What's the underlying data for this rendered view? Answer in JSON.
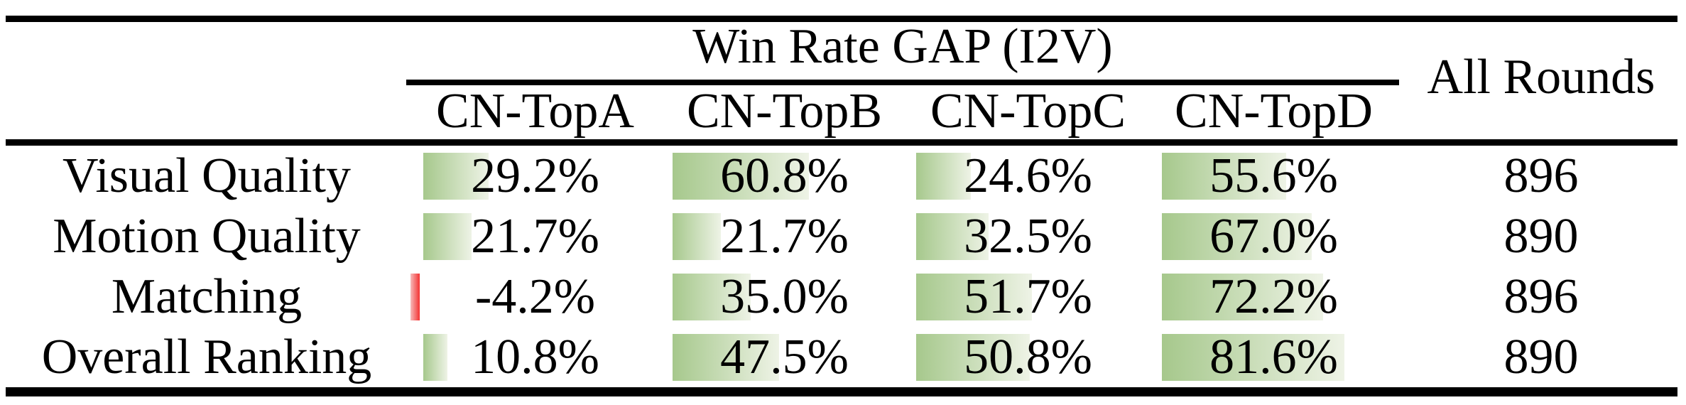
{
  "table": {
    "group_header": "Win Rate GAP (I2V)",
    "all_rounds_header": "All Rounds",
    "column_headers": [
      "CN-TopA",
      "CN-TopB",
      "CN-TopC",
      "CN-TopD"
    ],
    "rows": [
      {
        "label": "Visual Quality",
        "cells": [
          {
            "text": "29.2%",
            "value": 29.2
          },
          {
            "text": "60.8%",
            "value": 60.8
          },
          {
            "text": "24.6%",
            "value": 24.6
          },
          {
            "text": "55.6%",
            "value": 55.6
          }
        ],
        "all_rounds": "896"
      },
      {
        "label": "Motion Quality",
        "cells": [
          {
            "text": "21.7%",
            "value": 21.7
          },
          {
            "text": "21.7%",
            "value": 21.7
          },
          {
            "text": "32.5%",
            "value": 32.5
          },
          {
            "text": "67.0%",
            "value": 67.0
          }
        ],
        "all_rounds": "890"
      },
      {
        "label": "Matching",
        "cells": [
          {
            "text": "-4.2%",
            "value": -4.2
          },
          {
            "text": "35.0%",
            "value": 35.0
          },
          {
            "text": "51.7%",
            "value": 51.7
          },
          {
            "text": "72.2%",
            "value": 72.2
          }
        ],
        "all_rounds": "896"
      },
      {
        "label": "Overall Ranking",
        "cells": [
          {
            "text": "10.8%",
            "value": 10.8
          },
          {
            "text": "47.5%",
            "value": 47.5
          },
          {
            "text": "50.8%",
            "value": 50.8
          },
          {
            "text": "81.6%",
            "value": 81.6
          }
        ],
        "all_rounds": "890"
      }
    ]
  },
  "colors": {
    "bar_positive_start": "#a6c88c",
    "bar_positive_end": "#eef3e6",
    "bar_negative_start": "#f6baba",
    "bar_negative_end": "#f43232",
    "rule": "#000000",
    "text": "#000000"
  },
  "chart_data": {
    "type": "table",
    "title": "Win Rate GAP (I2V)",
    "categories": [
      "Visual Quality",
      "Motion Quality",
      "Matching",
      "Overall Ranking"
    ],
    "series": [
      {
        "name": "CN-TopA",
        "values": [
          29.2,
          21.7,
          -4.2,
          10.8
        ]
      },
      {
        "name": "CN-TopB",
        "values": [
          60.8,
          21.7,
          35.0,
          47.5
        ]
      },
      {
        "name": "CN-TopC",
        "values": [
          24.6,
          32.5,
          51.7,
          50.8
        ]
      },
      {
        "name": "CN-TopD",
        "values": [
          55.6,
          67.0,
          72.2,
          81.6
        ]
      }
    ],
    "all_rounds": [
      896,
      890,
      896,
      890
    ],
    "unit": "%"
  }
}
